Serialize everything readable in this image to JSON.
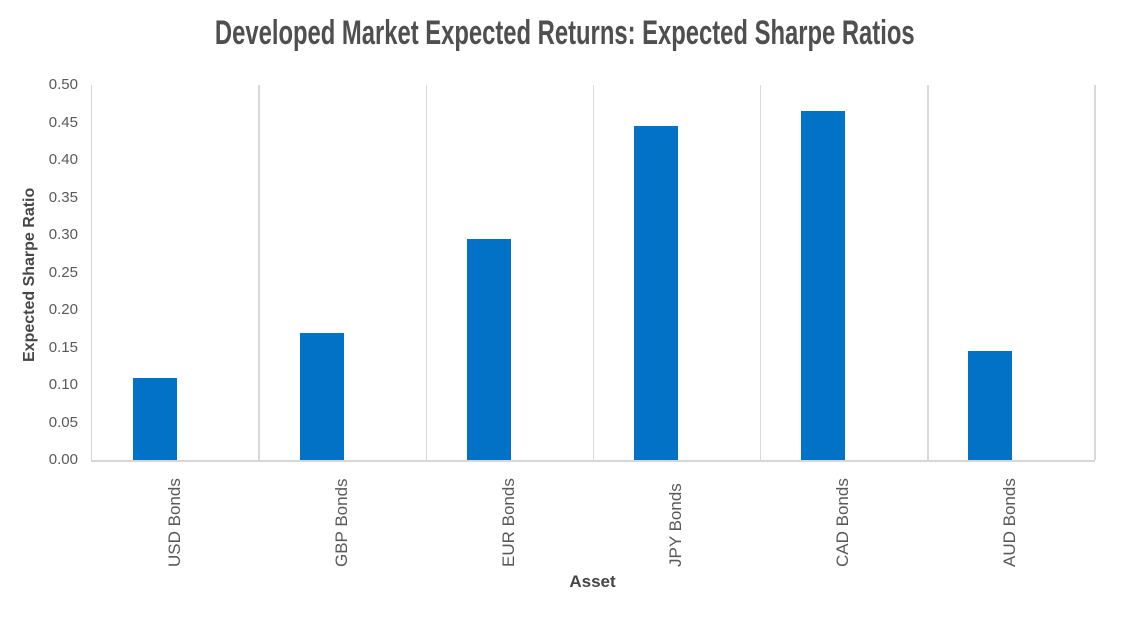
{
  "chart_data": {
    "type": "bar",
    "title": "Developed Market Expected Returns: Expected Sharpe Ratios",
    "xlabel": "Asset",
    "ylabel": "Expected Sharpe Ratio",
    "categories": [
      "USD Bonds",
      "GBP Bonds",
      "EUR Bonds",
      "JPY Bonds",
      "CAD Bonds",
      "AUD Bonds"
    ],
    "values": [
      0.11,
      0.17,
      0.295,
      0.445,
      0.465,
      0.145
    ],
    "ylim": [
      0,
      0.5
    ],
    "yticks": [
      "0.00",
      "0.05",
      "0.10",
      "0.15",
      "0.20",
      "0.25",
      "0.30",
      "0.35",
      "0.40",
      "0.45",
      "0.50"
    ],
    "grid": "vertical-category-boundaries-only",
    "legend": "none",
    "colors": {
      "bar": "#0272c6",
      "gridline": "#d9d9d9",
      "axis_line": "#d6d6d6",
      "title_text": "#4f4f4f",
      "tick_text": "#595959",
      "axis_title_text": "#454545"
    }
  }
}
